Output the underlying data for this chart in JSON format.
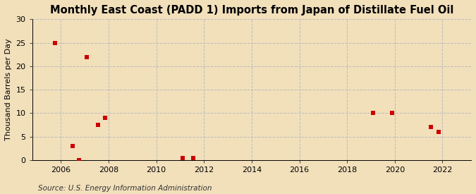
{
  "title": "Monthly East Coast (PADD 1) Imports from Japan of Distillate Fuel Oil",
  "ylabel": "Thousand Barrels per Day",
  "source": "Source: U.S. Energy Information Administration",
  "background_color": "#f2e0bb",
  "scatter_color": "#cc0000",
  "marker": "s",
  "marker_size": 4,
  "xlim": [
    2004.8,
    2023.2
  ],
  "ylim": [
    0,
    30
  ],
  "yticks": [
    0,
    5,
    10,
    15,
    20,
    25,
    30
  ],
  "xticks": [
    2006,
    2008,
    2010,
    2012,
    2014,
    2016,
    2018,
    2020,
    2022
  ],
  "data_x": [
    2005.75,
    2006.5,
    2006.75,
    2007.1,
    2007.55,
    2007.85,
    2011.1,
    2011.55,
    2019.1,
    2019.9,
    2021.5,
    2021.85
  ],
  "data_y": [
    25,
    3,
    0,
    22,
    7.5,
    9,
    0.5,
    0.5,
    10,
    10,
    7,
    6
  ],
  "grid_color": "#bbbbbb",
  "grid_style": "--",
  "title_fontsize": 10.5,
  "label_fontsize": 8,
  "tick_fontsize": 8,
  "source_fontsize": 7.5
}
